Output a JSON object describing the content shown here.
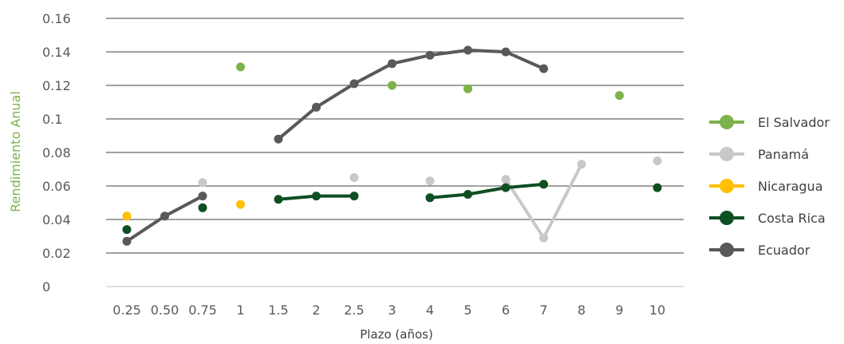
{
  "chart_data": {
    "type": "line",
    "xlabel": "Plazo (años)",
    "ylabel": "Rendimiento Anual",
    "categories": [
      "0.25",
      "0.50",
      "0.75",
      "1",
      "1.5",
      "2",
      "2.5",
      "3",
      "4",
      "5",
      "6",
      "7",
      "8",
      "9",
      "10"
    ],
    "yticks": [
      "0",
      "0.02",
      "0.04",
      "0.06",
      "0.08",
      "0.1",
      "0.12",
      "0.14",
      "0.16"
    ],
    "ylim": [
      0,
      0.16
    ],
    "grid": "horizontal",
    "legend_position": "right",
    "series": [
      {
        "name": "El Salvador",
        "color": "#7cb34a",
        "values": [
          null,
          null,
          null,
          0.131,
          null,
          null,
          null,
          0.12,
          null,
          0.118,
          null,
          null,
          null,
          0.114,
          null
        ]
      },
      {
        "name": "Panamá",
        "color": "#c8c8c8",
        "values": [
          null,
          null,
          0.062,
          null,
          null,
          null,
          0.065,
          null,
          0.063,
          null,
          0.064,
          0.029,
          0.073,
          null,
          0.075
        ]
      },
      {
        "name": "Nicaragua",
        "color": "#ffc000",
        "values": [
          0.042,
          null,
          null,
          0.049,
          null,
          null,
          null,
          null,
          null,
          null,
          null,
          null,
          null,
          null,
          null
        ]
      },
      {
        "name": "Costa Rica",
        "color": "#0d4f22",
        "values": [
          0.034,
          null,
          0.047,
          null,
          0.052,
          0.054,
          0.054,
          null,
          0.053,
          0.055,
          0.059,
          0.061,
          null,
          null,
          0.059
        ]
      },
      {
        "name": "Ecuador",
        "color": "#595959",
        "values": [
          0.027,
          0.042,
          0.054,
          null,
          0.088,
          0.107,
          0.121,
          0.133,
          0.138,
          0.141,
          0.14,
          0.13,
          null,
          null,
          null
        ]
      }
    ]
  }
}
